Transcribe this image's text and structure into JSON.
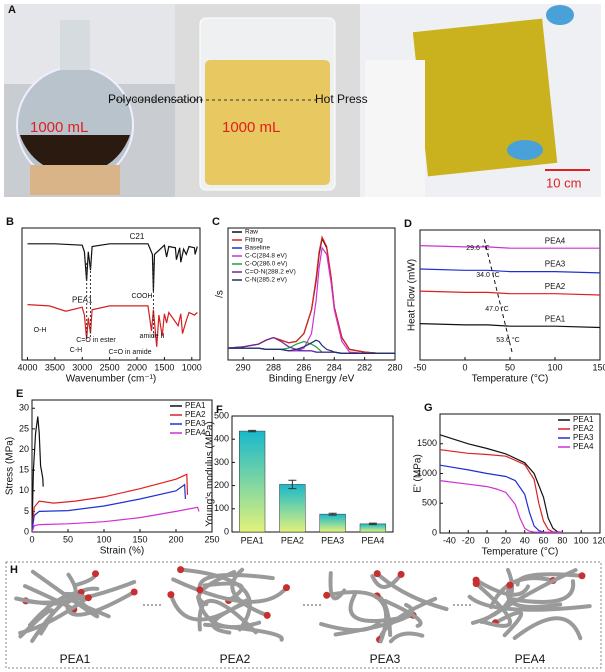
{
  "panel_a": {
    "label": "A",
    "texts": [
      "1000 mL",
      "Polycondensation",
      "1000 mL",
      "Hot Press",
      "10 cm"
    ]
  },
  "chart_data": [
    {
      "type": "line",
      "panel": "B",
      "xlabel": "Wavenumber (cm⁻¹)",
      "xlim": [
        4100,
        850
      ],
      "xticks": [
        4000,
        3500,
        3000,
        2500,
        2000,
        1500,
        1000
      ],
      "ylim": [
        0,
        100
      ],
      "legend": "inline",
      "series": [
        {
          "name": "C21",
          "color": "#111111",
          "x": [
            4000,
            3500,
            3000,
            2960,
            2920,
            2890,
            2850,
            2820,
            2500,
            2000,
            1800,
            1720,
            1700,
            1680,
            1500,
            1460,
            1420,
            1300,
            1280,
            1220,
            1200,
            1150,
            1100,
            1050,
            950,
            940,
            900
          ],
          "values": [
            88,
            88,
            87,
            82,
            60,
            82,
            68,
            86,
            88,
            88,
            88,
            80,
            52,
            80,
            87,
            78,
            86,
            85,
            76,
            85,
            74,
            84,
            80,
            86,
            85,
            80,
            86
          ]
        },
        {
          "name": "PEA1",
          "color": "#d42020",
          "x": [
            4000,
            3600,
            3300,
            3000,
            2960,
            2920,
            2890,
            2850,
            2820,
            2500,
            2000,
            1800,
            1735,
            1700,
            1640,
            1600,
            1540,
            1500,
            1460,
            1420,
            1250,
            1200,
            1170,
            1100,
            1050,
            950,
            900
          ],
          "values": [
            42,
            41,
            37,
            40,
            34,
            16,
            32,
            20,
            38,
            41,
            41,
            41,
            22,
            38,
            10,
            34,
            18,
            35,
            28,
            36,
            26,
            35,
            20,
            30,
            36,
            34,
            36
          ]
        }
      ],
      "annotations": [
        "COOH",
        "O-H",
        "C-H",
        "C=O in ester",
        "amide II",
        "C=O in amide"
      ]
    },
    {
      "type": "line",
      "panel": "C",
      "xlabel": "Binding Energy /eV",
      "ylabel": "/s",
      "xlim": [
        291,
        280
      ],
      "xticks": [
        290,
        288,
        286,
        284,
        282,
        280
      ],
      "ylim": [
        0,
        100
      ],
      "legend": "upper left",
      "series": [
        {
          "name": "Raw",
          "color": "#111111",
          "x": [
            291,
            290,
            289,
            288.5,
            288,
            287.5,
            287,
            286.5,
            286,
            285.5,
            285.2,
            285,
            284.8,
            284.5,
            284.2,
            284,
            283.5,
            283,
            282,
            281,
            280
          ],
          "values": [
            9,
            10,
            12,
            15,
            17,
            15,
            13,
            14,
            20,
            38,
            60,
            80,
            92,
            85,
            62,
            40,
            17,
            8,
            6,
            5,
            5
          ]
        },
        {
          "name": "Fitting",
          "color": "#e02020",
          "x": [
            291,
            290,
            289,
            288.5,
            288,
            287.5,
            287,
            286.5,
            286,
            285.5,
            285.2,
            285,
            284.8,
            284.5,
            284.2,
            284,
            283.5,
            283,
            282,
            281,
            280
          ],
          "values": [
            9,
            10,
            12,
            15,
            17,
            15,
            13,
            14,
            20,
            38,
            62,
            82,
            93,
            86,
            62,
            40,
            17,
            8,
            6,
            5,
            5
          ]
        },
        {
          "name": "Baseline",
          "color": "#2030d0",
          "x": [
            291,
            290,
            289,
            288.5,
            288,
            287.5,
            287,
            286.5,
            286,
            285.5,
            285.2,
            285,
            284.8,
            284.5,
            284.2,
            284,
            283.5,
            283,
            282,
            281,
            280
          ],
          "values": [
            9,
            9,
            9,
            8,
            8,
            8,
            7,
            7,
            7,
            7,
            6,
            6,
            6,
            6,
            6,
            6,
            5,
            5,
            5,
            5,
            5
          ]
        },
        {
          "name": "C-C(284.8 eV)",
          "color": "#d030d0",
          "x": [
            291,
            290,
            289,
            288.5,
            288,
            287.5,
            287,
            286.5,
            286,
            285.5,
            285.2,
            285,
            284.8,
            284.5,
            284.2,
            284,
            283.5,
            283,
            282,
            281,
            280
          ],
          "values": [
            9,
            9,
            9,
            8,
            8,
            8,
            7,
            7,
            9,
            20,
            45,
            70,
            85,
            80,
            58,
            38,
            14,
            6,
            5,
            5,
            5
          ]
        },
        {
          "name": "C-O(286.0 eV)",
          "color": "#20a040",
          "x": [
            291,
            290,
            289,
            288.5,
            288,
            287.5,
            287,
            286.5,
            286,
            285.5,
            285.2,
            285,
            284.8,
            284.5,
            284.2,
            284,
            283.5,
            283,
            282,
            281,
            280
          ],
          "values": [
            9,
            9,
            9,
            8,
            8,
            8,
            9,
            12,
            14,
            12,
            10,
            8,
            6,
            6,
            6,
            6,
            5,
            5,
            5,
            5,
            5
          ]
        },
        {
          "name": "C=O-N(288.2 eV)",
          "color": "#6a2aa0",
          "x": [
            291,
            290,
            289,
            288.5,
            288,
            287.5,
            287,
            286.5,
            286,
            285.5,
            285.2,
            285,
            284.8,
            284.5,
            284.2,
            284,
            283.5,
            283,
            282,
            281,
            280
          ],
          "values": [
            9,
            10,
            12,
            15,
            17,
            14,
            10,
            8,
            7,
            7,
            6,
            6,
            6,
            6,
            6,
            6,
            5,
            5,
            5,
            5,
            5
          ]
        },
        {
          "name": "C-N(285.2 eV)",
          "color": "#203070",
          "x": [
            291,
            290,
            289,
            288.5,
            288,
            287.5,
            287,
            286.5,
            286,
            285.5,
            285.2,
            285,
            284.8,
            284.5,
            284.2,
            284,
            283.5,
            283,
            282,
            281,
            280
          ],
          "values": [
            9,
            9,
            9,
            8,
            8,
            8,
            7,
            8,
            10,
            13,
            15,
            14,
            11,
            8,
            7,
            6,
            5,
            5,
            5,
            5,
            5
          ]
        }
      ]
    },
    {
      "type": "line",
      "panel": "D",
      "xlabel": "Temperature (°C)",
      "ylabel": "Heat Flow (mW)",
      "xlim": [
        -50,
        150
      ],
      "xticks": [
        -50,
        0,
        50,
        100,
        150
      ],
      "ylim": [
        0,
        100
      ],
      "legend": "inline",
      "series": [
        {
          "name": "PEA4",
          "color": "#d030d0",
          "x": [
            -50,
            0,
            25,
            50,
            100,
            150
          ],
          "values": [
            88,
            87,
            87,
            86,
            86,
            86
          ]
        },
        {
          "name": "PEA3",
          "color": "#2030d0",
          "x": [
            -50,
            0,
            25,
            50,
            100,
            150
          ],
          "values": [
            70,
            69,
            69,
            68,
            68,
            67
          ]
        },
        {
          "name": "PEA2",
          "color": "#e02020",
          "x": [
            -50,
            0,
            25,
            50,
            100,
            150
          ],
          "values": [
            53,
            52,
            52,
            51,
            51,
            50
          ]
        },
        {
          "name": "PEA1",
          "color": "#111111",
          "x": [
            -50,
            0,
            25,
            50,
            100,
            150
          ],
          "values": [
            28,
            27,
            27,
            26,
            26,
            25
          ]
        }
      ],
      "annotations": [
        "29.6 °C",
        "34.0 °C",
        "47.0 °C",
        "53.6 °C"
      ]
    },
    {
      "type": "line",
      "panel": "E",
      "xlabel": "Strain (%)",
      "ylabel": "Stress (MPa)",
      "xlim": [
        0,
        250
      ],
      "xticks": [
        0,
        50,
        100,
        150,
        200,
        250
      ],
      "ylim": [
        0,
        32
      ],
      "yticks": [
        0,
        5,
        10,
        15,
        20,
        25,
        30
      ],
      "legend": "upper right",
      "series": [
        {
          "name": "PEA1",
          "color": "#111111",
          "x": [
            0,
            2,
            5,
            8,
            10,
            12,
            13,
            15,
            15.5
          ],
          "values": [
            0,
            15,
            24,
            28,
            24,
            16,
            15,
            13,
            11
          ]
        },
        {
          "name": "PEA2",
          "color": "#e02020",
          "x": [
            0,
            3,
            10,
            30,
            60,
            100,
            150,
            200,
            215,
            216
          ],
          "values": [
            0,
            6,
            7.5,
            7,
            7.5,
            8.5,
            10.5,
            12.8,
            14,
            9
          ]
        },
        {
          "name": "PEA3",
          "color": "#2030d0",
          "x": [
            0,
            3,
            10,
            50,
            100,
            150,
            200,
            212,
            213
          ],
          "values": [
            0,
            4,
            5,
            5.2,
            6.3,
            8,
            10,
            11.5,
            8
          ]
        },
        {
          "name": "PEA4",
          "color": "#d030d0",
          "x": [
            0,
            3,
            10,
            50,
            100,
            150,
            200,
            230,
            232
          ],
          "values": [
            0,
            1.5,
            1.8,
            2,
            2.5,
            3.5,
            5,
            6,
            5
          ]
        }
      ]
    },
    {
      "type": "bar",
      "panel": "F",
      "ylabel": "Young's modulus (MPa)",
      "categories": [
        "PEA1",
        "PEA2",
        "PEA3",
        "PEA4"
      ],
      "values": [
        435,
        205,
        77,
        35
      ],
      "errors": [
        3,
        18,
        4,
        3
      ],
      "ylim": [
        0,
        500
      ],
      "yticks": [
        0,
        100,
        200,
        300,
        400,
        500
      ]
    },
    {
      "type": "line",
      "panel": "G",
      "xlabel": "Temperature (°C)",
      "ylabel": "E' (MPa)",
      "xlim": [
        -50,
        120
      ],
      "xticks": [
        -40,
        -20,
        0,
        20,
        40,
        60,
        80,
        100,
        120
      ],
      "ylim": [
        0,
        2000
      ],
      "yticks": [
        0,
        500,
        1000,
        1500
      ],
      "legend": "upper right",
      "series": [
        {
          "name": "PEA1",
          "color": "#111111",
          "x": [
            -50,
            -20,
            0,
            20,
            40,
            50,
            60,
            65,
            70,
            75,
            80
          ],
          "values": [
            1650,
            1500,
            1420,
            1330,
            1180,
            1000,
            600,
            250,
            80,
            20,
            10
          ]
        },
        {
          "name": "PEA2",
          "color": "#e02020",
          "x": [
            -50,
            -20,
            0,
            20,
            40,
            50,
            55,
            60,
            65,
            70,
            80
          ],
          "values": [
            1400,
            1340,
            1320,
            1290,
            1150,
            900,
            500,
            200,
            60,
            20,
            10
          ]
        },
        {
          "name": "PEA3",
          "color": "#2030d0",
          "x": [
            -50,
            -20,
            0,
            20,
            30,
            40,
            45,
            50,
            55,
            60,
            80
          ],
          "values": [
            1140,
            1060,
            1000,
            950,
            880,
            650,
            350,
            120,
            40,
            15,
            10
          ]
        },
        {
          "name": "PEA4",
          "color": "#d030d0",
          "x": [
            -50,
            -20,
            0,
            10,
            20,
            30,
            35,
            40,
            45,
            50,
            80
          ],
          "values": [
            880,
            820,
            780,
            740,
            680,
            480,
            250,
            80,
            30,
            15,
            10
          ]
        }
      ]
    }
  ],
  "panel_h": {
    "label": "H",
    "labels": [
      "PEA1",
      "PEA2",
      "PEA3",
      "PEA4"
    ]
  }
}
